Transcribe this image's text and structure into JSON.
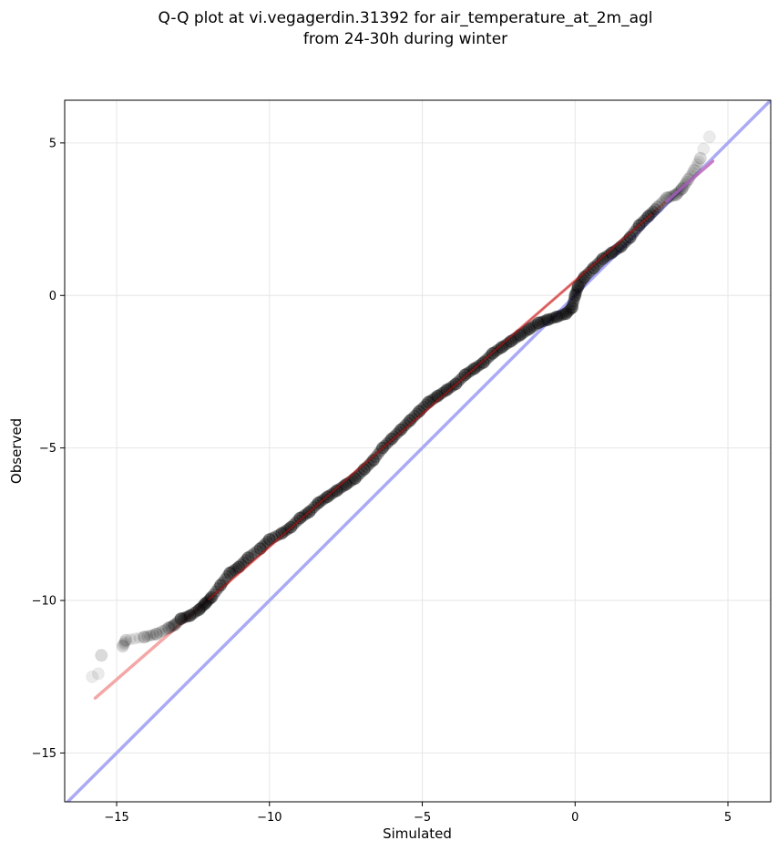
{
  "chart_data": {
    "type": "scatter",
    "title_lines": [
      "Q-Q plot at vi.vegagerdin.31392 for air_temperature_at_2m_agl",
      "from 24-30h during winter"
    ],
    "xlabel": "Simulated",
    "ylabel": "Observed",
    "xlim": [
      -16.7,
      6.4
    ],
    "ylim": [
      -16.6,
      6.4
    ],
    "xticks": [
      -15,
      -10,
      -5,
      0,
      5
    ],
    "yticks": [
      -15,
      -10,
      -5,
      0,
      5
    ],
    "xtick_labels": [
      "−15",
      "−10",
      "−5",
      "0",
      "5"
    ],
    "ytick_labels": [
      "−15",
      "−10",
      "−5",
      "0",
      "5"
    ],
    "grid": true,
    "colors": {
      "points": "#000000",
      "identity_line": "#aaaaf5",
      "fit_line": "#f4a7a7",
      "fit_line_dense": "#c01818",
      "fit_line_upper": "#b06ad6"
    },
    "identity_line": {
      "x": [
        -16.7,
        6.4
      ],
      "y": [
        -16.7,
        6.4
      ]
    },
    "fit_line": {
      "x": [
        -15.7,
        4.5
      ],
      "y": [
        -13.2,
        4.4
      ]
    },
    "series": [
      {
        "x": [
          -15.8,
          -15.6,
          -15.5,
          -14.8,
          -14.7,
          -14.1,
          -13.7,
          -13.3,
          -13.1,
          -12.9,
          -12.6,
          -12.3,
          -12.1,
          -11.9,
          -11.6,
          -11.3,
          -11.0,
          -10.7,
          -10.3,
          -10.0,
          -9.6,
          -9.3,
          -9.0,
          -8.7,
          -8.4,
          -8.1,
          -7.8,
          -7.5,
          -7.2,
          -6.9,
          -6.6,
          -6.3,
          -6.0,
          -5.7,
          -5.4,
          -5.1,
          -4.8,
          -4.5,
          -4.2,
          -3.9,
          -3.6,
          -3.3,
          -3.0,
          -2.7,
          -2.4,
          -2.1,
          -1.8,
          -1.5,
          -1.2,
          -0.9,
          -0.6,
          -0.3,
          -0.1,
          0.0,
          0.1,
          0.3,
          0.6,
          0.9,
          1.2,
          1.5,
          1.8,
          2.1,
          2.4,
          2.7,
          3.0,
          3.3,
          3.5,
          3.7,
          3.9,
          4.1,
          4.2,
          4.4
        ],
        "y": [
          -12.5,
          -12.4,
          -11.8,
          -11.5,
          -11.3,
          -11.2,
          -11.1,
          -10.9,
          -10.8,
          -10.6,
          -10.5,
          -10.3,
          -10.1,
          -9.9,
          -9.5,
          -9.1,
          -8.9,
          -8.6,
          -8.3,
          -8.0,
          -7.8,
          -7.6,
          -7.3,
          -7.1,
          -6.8,
          -6.6,
          -6.4,
          -6.2,
          -6.0,
          -5.7,
          -5.4,
          -5.0,
          -4.7,
          -4.4,
          -4.1,
          -3.8,
          -3.5,
          -3.3,
          -3.1,
          -2.9,
          -2.6,
          -2.4,
          -2.2,
          -1.9,
          -1.7,
          -1.5,
          -1.3,
          -1.1,
          -0.9,
          -0.8,
          -0.7,
          -0.6,
          -0.4,
          0.0,
          0.3,
          0.6,
          0.9,
          1.2,
          1.4,
          1.6,
          1.9,
          2.3,
          2.6,
          2.9,
          3.2,
          3.3,
          3.5,
          3.8,
          4.1,
          4.5,
          4.8,
          5.2
        ]
      }
    ]
  }
}
